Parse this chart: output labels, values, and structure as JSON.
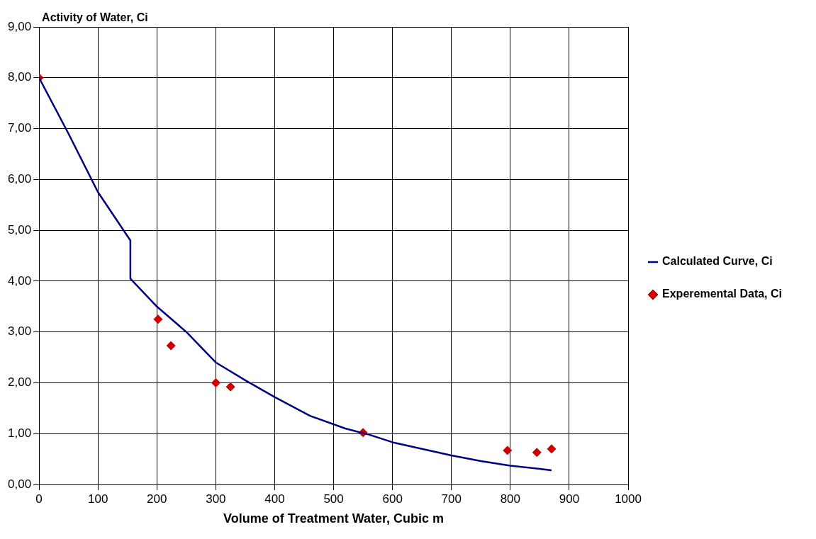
{
  "chart_data": {
    "type": "line",
    "ylabel": "Activity of Water, Ci",
    "xlabel": "Volume of Treatment Water, Cubic m",
    "xlim": [
      0,
      1000
    ],
    "xticks": [
      0,
      100,
      200,
      300,
      400,
      500,
      600,
      700,
      800,
      900,
      1000
    ],
    "ylim": [
      0,
      9
    ],
    "yticks": [
      {
        "value": 0,
        "label": "0,00"
      },
      {
        "value": 1,
        "label": "1,00"
      },
      {
        "value": 2,
        "label": "2,00"
      },
      {
        "value": 3,
        "label": "3,00"
      },
      {
        "value": 4,
        "label": "4,00"
      },
      {
        "value": 5,
        "label": "5,00"
      },
      {
        "value": 6,
        "label": "6,00"
      },
      {
        "value": 7,
        "label": "7,00"
      },
      {
        "value": 8,
        "label": "8,00"
      },
      {
        "value": 9,
        "label": "9,00"
      }
    ],
    "grid": true,
    "legend": "right",
    "series": [
      {
        "name": "Calculated Curve, Ci",
        "color": "#000080",
        "marker": "none",
        "line_style": "solid",
        "x": [
          0,
          50,
          100,
          155,
          155,
          200,
          250,
          300,
          350,
          400,
          460,
          520,
          560,
          600,
          650,
          700,
          750,
          800,
          870
        ],
        "values": [
          8.0,
          6.9,
          5.75,
          4.8,
          4.05,
          3.5,
          3.0,
          2.4,
          2.05,
          1.72,
          1.35,
          1.1,
          0.98,
          0.83,
          0.7,
          0.57,
          0.46,
          0.37,
          0.28
        ]
      },
      {
        "name": "Experemental Data, Ci",
        "type": "scatter",
        "color": "#cc0000",
        "marker": "diamond",
        "x": [
          0,
          202,
          224,
          300,
          325,
          550,
          795,
          845,
          870
        ],
        "values": [
          8.0,
          3.25,
          2.73,
          2.0,
          1.92,
          1.02,
          0.67,
          0.63,
          0.7
        ]
      }
    ]
  }
}
